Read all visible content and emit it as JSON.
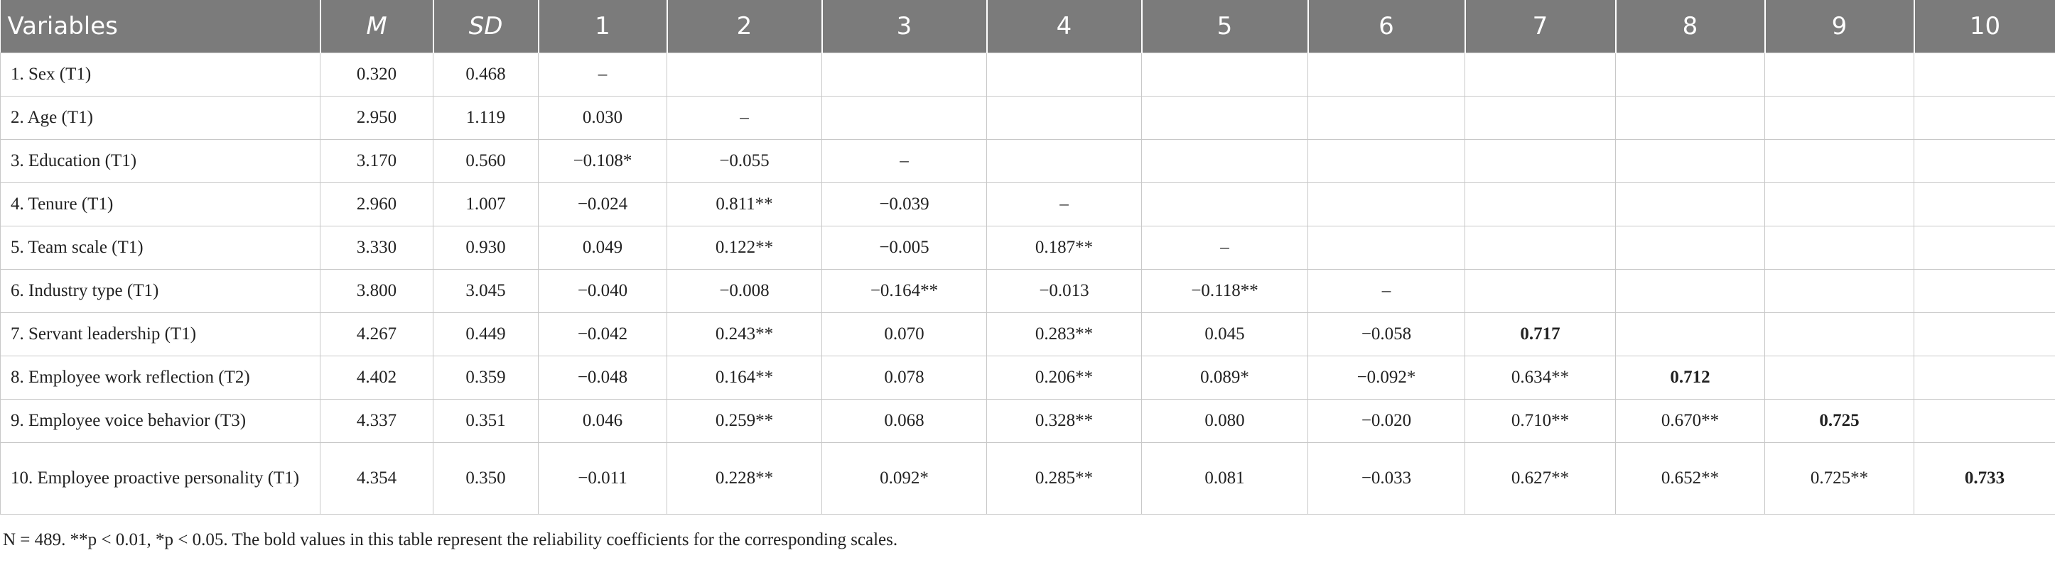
{
  "table": {
    "header": [
      "Variables",
      "M",
      "SD",
      "1",
      "2",
      "3",
      "4",
      "5",
      "6",
      "7",
      "8",
      "9",
      "10"
    ],
    "rows": [
      [
        "1. Sex (T1)",
        "0.320",
        "0.468",
        "–"
      ],
      [
        "2. Age (T1)",
        "2.950",
        "1.119",
        "0.030",
        "–"
      ],
      [
        "3. Education (T1)",
        "3.170",
        "0.560",
        "−0.108*",
        "−0.055",
        "–"
      ],
      [
        "4. Tenure (T1)",
        "2.960",
        "1.007",
        "−0.024",
        "0.811**",
        "−0.039",
        "–"
      ],
      [
        "5. Team scale (T1)",
        "3.330",
        "0.930",
        "0.049",
        "0.122**",
        "−0.005",
        "0.187**",
        "–"
      ],
      [
        "6. Industry type (T1)",
        "3.800",
        "3.045",
        "−0.040",
        "−0.008",
        "−0.164**",
        "−0.013",
        "−0.118**",
        "–"
      ],
      [
        "7. Servant leadership (T1)",
        "4.267",
        "0.449",
        "−0.042",
        "0.243**",
        "0.070",
        "0.283**",
        "0.045",
        "−0.058",
        {
          "text": "0.717",
          "bold": true
        }
      ],
      [
        "8. Employee work reflection (T2)",
        "4.402",
        "0.359",
        "−0.048",
        "0.164**",
        "0.078",
        "0.206**",
        "0.089*",
        "−0.092*",
        "0.634**",
        {
          "text": "0.712",
          "bold": true
        }
      ],
      [
        "9. Employee voice behavior (T3)",
        "4.337",
        "0.351",
        "0.046",
        "0.259**",
        "0.068",
        "0.328**",
        "0.080",
        "−0.020",
        "0.710**",
        "0.670**",
        {
          "text": "0.725",
          "bold": true
        }
      ],
      [
        "10. Employee proactive personality (T1)",
        "4.354",
        "0.350",
        "−0.011",
        "0.228**",
        "0.092*",
        "0.285**",
        "0.081",
        "−0.033",
        "0.627**",
        "0.652**",
        "0.725**",
        {
          "text": "0.733",
          "bold": true
        }
      ]
    ],
    "footnote": "N = 489. **p < 0.01, *p < 0.05. The bold values in this table represent the reliability coefficients for the corresponding scales."
  }
}
